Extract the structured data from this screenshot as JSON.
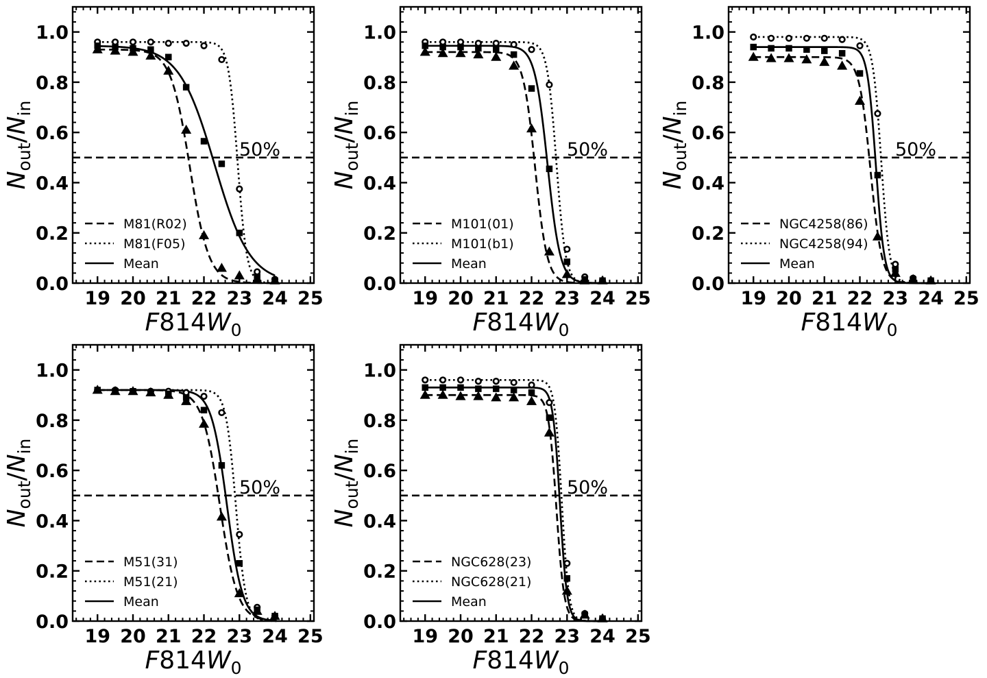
{
  "figure": {
    "x_axis_label": "F814W",
    "x_axis_subscript": "0",
    "y_axis_label_num": "N",
    "y_axis_label_num_sub": "out",
    "y_axis_label_slash": "/",
    "y_axis_label_den": "N",
    "y_axis_label_den_sub": "in",
    "reference_label": "50%"
  },
  "chart_data": [
    {
      "type": "line",
      "panel": "top-left",
      "xlim": [
        18.3,
        25.1
      ],
      "ylim": [
        0,
        1.1
      ],
      "x_ticks": [
        19,
        20,
        21,
        22,
        23,
        24,
        25
      ],
      "y_ticks": [
        0.0,
        0.2,
        0.4,
        0.6,
        0.8,
        1.0
      ],
      "y_tick_labels": [
        "0.0",
        "0.2",
        "0.4",
        "0.6",
        "0.8",
        "1.0"
      ],
      "reference_line": 0.5,
      "legend": [
        "M81(R02)",
        "M81(F05)",
        "Mean"
      ],
      "series": [
        {
          "name": "M81(R02)",
          "style": "dashed",
          "marker": "triangle",
          "x": [
            19,
            19.5,
            20,
            20.5,
            21,
            21.5,
            22,
            22.5,
            23,
            23.5,
            24
          ],
          "values": [
            0.93,
            0.925,
            0.92,
            0.905,
            0.845,
            0.61,
            0.19,
            0.06,
            0.03,
            0.015,
            0.01
          ],
          "curve": {
            "top": 0.93,
            "m50": 21.6,
            "width": 0.27
          }
        },
        {
          "name": "M81(F05)",
          "style": "dotted",
          "marker": "circle",
          "x": [
            19,
            19.5,
            20,
            20.5,
            21,
            21.5,
            22,
            22.5,
            23,
            23.5,
            24
          ],
          "values": [
            0.96,
            0.96,
            0.96,
            0.96,
            0.955,
            0.955,
            0.945,
            0.89,
            0.375,
            0.045,
            0.015
          ],
          "curve": {
            "top": 0.96,
            "m50": 22.95,
            "width": 0.13
          }
        },
        {
          "name": "Mean",
          "style": "solid",
          "marker": "square",
          "x": [
            19,
            19.5,
            20,
            20.5,
            21,
            21.5,
            22,
            22.5,
            23,
            23.5,
            24
          ],
          "values": [
            0.945,
            0.94,
            0.935,
            0.93,
            0.9,
            0.78,
            0.565,
            0.475,
            0.2,
            0.025,
            0.01
          ],
          "curve": {
            "top": 0.945,
            "m50": 22.3,
            "width": 0.5,
            "x_end": 24.0
          }
        }
      ]
    },
    {
      "type": "line",
      "panel": "top-middle",
      "xlim": [
        18.3,
        25.1
      ],
      "ylim": [
        0,
        1.1
      ],
      "x_ticks": [
        19,
        20,
        21,
        22,
        23,
        24,
        25
      ],
      "y_ticks": [
        0.0,
        0.2,
        0.4,
        0.6,
        0.8,
        1.0
      ],
      "y_tick_labels": [
        "0.0",
        "0.2",
        "0.4",
        "0.6",
        "0.8",
        "1.0"
      ],
      "reference_line": 0.5,
      "legend": [
        "M101(01)",
        "M101(b1)",
        "Mean"
      ],
      "series": [
        {
          "name": "M101(01)",
          "style": "dashed",
          "marker": "triangle",
          "x": [
            19,
            19.5,
            20,
            20.5,
            21,
            21.5,
            22,
            22.5,
            23,
            23.5,
            24
          ],
          "values": [
            0.92,
            0.915,
            0.915,
            0.91,
            0.9,
            0.865,
            0.615,
            0.125,
            0.035,
            0.01,
            0.01
          ],
          "curve": {
            "top": 0.92,
            "m50": 22.1,
            "width": 0.17
          }
        },
        {
          "name": "M101(b1)",
          "style": "dotted",
          "marker": "circle",
          "x": [
            19,
            19.5,
            20,
            20.5,
            21,
            21.5,
            22,
            22.5,
            23,
            23.5,
            24
          ],
          "values": [
            0.96,
            0.96,
            0.96,
            0.955,
            0.955,
            0.95,
            0.93,
            0.79,
            0.135,
            0.025,
            0.01
          ],
          "curve": {
            "top": 0.96,
            "m50": 22.7,
            "width": 0.13
          }
        },
        {
          "name": "Mean",
          "style": "solid",
          "marker": "square",
          "x": [
            19,
            19.5,
            20,
            20.5,
            21,
            21.5,
            22,
            22.5,
            23,
            23.5,
            24
          ],
          "values": [
            0.945,
            0.94,
            0.94,
            0.935,
            0.93,
            0.91,
            0.775,
            0.455,
            0.085,
            0.015,
            0.01
          ],
          "curve": {
            "top": 0.945,
            "m50": 22.45,
            "width": 0.18
          }
        }
      ]
    },
    {
      "type": "line",
      "panel": "top-right",
      "xlim": [
        18.3,
        25.1
      ],
      "ylim": [
        0,
        1.1
      ],
      "x_ticks": [
        19,
        20,
        21,
        22,
        23,
        24,
        25
      ],
      "y_ticks": [
        0.0,
        0.2,
        0.4,
        0.6,
        0.8,
        1.0
      ],
      "y_tick_labels": [
        "0.0",
        "0.2",
        "0.4",
        "0.6",
        "0.8",
        "1.0"
      ],
      "reference_line": 0.5,
      "legend": [
        "NGC4258(86)",
        "NGC4258(94)",
        "Mean"
      ],
      "series": [
        {
          "name": "NGC4258(86)",
          "style": "dashed",
          "marker": "triangle",
          "x": [
            19,
            19.5,
            20,
            20.5,
            21,
            21.5,
            22,
            22.5,
            23,
            23.5,
            24
          ],
          "values": [
            0.9,
            0.895,
            0.895,
            0.89,
            0.88,
            0.865,
            0.725,
            0.185,
            0.04,
            0.015,
            0.01
          ],
          "curve": {
            "top": 0.9,
            "m50": 22.3,
            "width": 0.16
          }
        },
        {
          "name": "NGC4258(94)",
          "style": "dotted",
          "marker": "circle",
          "x": [
            19,
            19.5,
            20,
            20.5,
            21,
            21.5,
            22,
            22.5,
            23,
            23.5,
            24
          ],
          "values": [
            0.98,
            0.975,
            0.975,
            0.975,
            0.975,
            0.97,
            0.945,
            0.675,
            0.075,
            0.02,
            0.01
          ],
          "curve": {
            "top": 0.98,
            "m50": 22.6,
            "width": 0.12
          }
        },
        {
          "name": "Mean",
          "style": "solid",
          "marker": "square",
          "x": [
            19,
            19.5,
            20,
            20.5,
            21,
            21.5,
            22,
            22.5,
            23,
            23.5,
            24
          ],
          "values": [
            0.94,
            0.935,
            0.935,
            0.93,
            0.925,
            0.915,
            0.835,
            0.43,
            0.055,
            0.015,
            0.01
          ],
          "curve": {
            "top": 0.94,
            "m50": 22.45,
            "width": 0.12
          }
        }
      ]
    },
    {
      "type": "line",
      "panel": "bottom-left",
      "xlim": [
        18.3,
        25.1
      ],
      "ylim": [
        0,
        1.1
      ],
      "x_ticks": [
        19,
        20,
        21,
        22,
        23,
        24,
        25
      ],
      "y_ticks": [
        0.0,
        0.2,
        0.4,
        0.6,
        0.8,
        1.0
      ],
      "y_tick_labels": [
        "0.0",
        "0.2",
        "0.4",
        "0.6",
        "0.8",
        "1.0"
      ],
      "reference_line": 0.5,
      "legend": [
        "M51(31)",
        "M51(21)",
        "Mean"
      ],
      "series": [
        {
          "name": "M51(31)",
          "style": "dashed",
          "marker": "triangle",
          "x": [
            19,
            19.5,
            20,
            20.5,
            21,
            21.5,
            22,
            22.5,
            23,
            23.5,
            24
          ],
          "values": [
            0.92,
            0.915,
            0.915,
            0.91,
            0.9,
            0.875,
            0.785,
            0.415,
            0.11,
            0.04,
            0.02
          ],
          "curve": {
            "top": 0.92,
            "m50": 22.45,
            "width": 0.25
          }
        },
        {
          "name": "M51(21)",
          "style": "dotted",
          "marker": "circle",
          "x": [
            19,
            19.5,
            20,
            20.5,
            21,
            21.5,
            22,
            22.5,
            23,
            23.5,
            24
          ],
          "values": [
            0.92,
            0.92,
            0.915,
            0.915,
            0.915,
            0.91,
            0.895,
            0.83,
            0.345,
            0.055,
            0.02
          ],
          "curve": {
            "top": 0.92,
            "m50": 22.9,
            "width": 0.14
          }
        },
        {
          "name": "Mean",
          "style": "solid",
          "marker": "square",
          "x": [
            19,
            19.5,
            20,
            20.5,
            21,
            21.5,
            22,
            22.5,
            23,
            23.5,
            24
          ],
          "values": [
            0.92,
            0.915,
            0.915,
            0.91,
            0.905,
            0.89,
            0.84,
            0.62,
            0.23,
            0.045,
            0.02
          ],
          "curve": {
            "top": 0.92,
            "m50": 22.65,
            "width": 0.22
          }
        }
      ]
    },
    {
      "type": "line",
      "panel": "bottom-middle",
      "xlim": [
        18.3,
        25.1
      ],
      "ylim": [
        0,
        1.1
      ],
      "x_ticks": [
        19,
        20,
        21,
        22,
        23,
        24,
        25
      ],
      "y_ticks": [
        0.0,
        0.2,
        0.4,
        0.6,
        0.8,
        1.0
      ],
      "y_tick_labels": [
        "0.0",
        "0.2",
        "0.4",
        "0.6",
        "0.8",
        "1.0"
      ],
      "reference_line": 0.5,
      "legend": [
        "NGC628(23)",
        "NGC628(21)",
        "Mean"
      ],
      "series": [
        {
          "name": "NGC628(23)",
          "style": "dashed",
          "marker": "triangle",
          "x": [
            19,
            19.5,
            20,
            20.5,
            21,
            21.5,
            22,
            22.5,
            23,
            23.5,
            24
          ],
          "values": [
            0.9,
            0.9,
            0.895,
            0.895,
            0.89,
            0.89,
            0.875,
            0.75,
            0.12,
            0.025,
            0.01
          ],
          "curve": {
            "top": 0.9,
            "m50": 22.7,
            "width": 0.11
          }
        },
        {
          "name": "NGC628(21)",
          "style": "dotted",
          "marker": "circle",
          "x": [
            19,
            19.5,
            20,
            20.5,
            21,
            21.5,
            22,
            22.5,
            23,
            23.5,
            24
          ],
          "values": [
            0.96,
            0.96,
            0.96,
            0.955,
            0.955,
            0.95,
            0.94,
            0.87,
            0.23,
            0.03,
            0.01
          ],
          "curve": {
            "top": 0.96,
            "m50": 22.85,
            "width": 0.1
          }
        },
        {
          "name": "Mean",
          "style": "solid",
          "marker": "square",
          "x": [
            19,
            19.5,
            20,
            20.5,
            21,
            21.5,
            22,
            22.5,
            23,
            23.5,
            24
          ],
          "values": [
            0.93,
            0.93,
            0.93,
            0.925,
            0.925,
            0.92,
            0.91,
            0.81,
            0.17,
            0.025,
            0.01
          ],
          "curve": {
            "top": 0.93,
            "m50": 22.8,
            "width": 0.1
          }
        }
      ]
    }
  ]
}
